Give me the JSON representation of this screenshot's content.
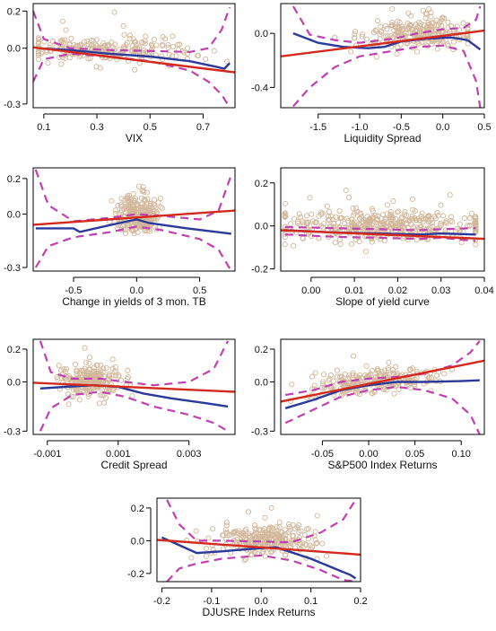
{
  "colors": {
    "points": "#d2b79a",
    "linear_fit": "#d42a1c",
    "smooth_fit": "#2b3a9a",
    "band": "#c040b0",
    "frame": "#000000"
  },
  "chart_data": [
    {
      "type": "scatter",
      "xlabel": "VIX",
      "xlim": [
        0.06,
        0.82
      ],
      "ylim": [
        -0.32,
        0.24
      ],
      "x_ticks": [
        0.1,
        0.3,
        0.5,
        0.7
      ],
      "x_tick_labels": [
        "0.1",
        "0.3",
        "0.5",
        "0.7"
      ],
      "y_ticks": [
        -0.3,
        0.0,
        0.2
      ],
      "y_tick_labels": [
        "-0.3",
        "0.0",
        "0.2"
      ],
      "linear_fit": [
        [
          0.06,
          0.005
        ],
        [
          0.82,
          -0.13
        ]
      ],
      "smooth_fit": [
        [
          0.08,
          0.0
        ],
        [
          0.2,
          -0.01
        ],
        [
          0.35,
          -0.03
        ],
        [
          0.5,
          -0.045
        ],
        [
          0.65,
          -0.07
        ],
        [
          0.75,
          -0.1
        ],
        [
          0.78,
          -0.11
        ],
        [
          0.8,
          -0.08
        ]
      ],
      "band_upper": [
        [
          0.06,
          0.2
        ],
        [
          0.1,
          0.05
        ],
        [
          0.2,
          0.0
        ],
        [
          0.35,
          -0.01
        ],
        [
          0.5,
          -0.015
        ],
        [
          0.65,
          -0.02
        ],
        [
          0.72,
          0.0
        ],
        [
          0.77,
          0.1
        ],
        [
          0.8,
          0.22
        ]
      ],
      "band_lower": [
        [
          0.06,
          -0.18
        ],
        [
          0.1,
          -0.06
        ],
        [
          0.2,
          -0.03
        ],
        [
          0.35,
          -0.045
        ],
        [
          0.5,
          -0.07
        ],
        [
          0.65,
          -0.12
        ],
        [
          0.72,
          -0.18
        ],
        [
          0.77,
          -0.25
        ],
        [
          0.8,
          -0.32
        ]
      ],
      "points": {
        "count": 240,
        "x_center": 0.33,
        "x_spread": 0.16,
        "x_range": [
          0.08,
          0.79
        ],
        "y_center": -0.005,
        "y_spread": 0.035,
        "y_range": [
          -0.12,
          0.22
        ],
        "seed": 11
      }
    },
    {
      "type": "scatter",
      "xlabel": "Liquidity Spread",
      "xlim": [
        -1.95,
        0.5
      ],
      "ylim": [
        -0.55,
        0.22
      ],
      "x_ticks": [
        -1.5,
        -1.0,
        -0.5,
        0.0,
        0.5
      ],
      "x_tick_labels": [
        "-1.5",
        "-1.0",
        "-0.5",
        "0.0",
        "0.5"
      ],
      "y_ticks": [
        -0.4,
        0.0
      ],
      "y_tick_labels": [
        "-0.4",
        "0.0"
      ],
      "linear_fit": [
        [
          -1.95,
          -0.17
        ],
        [
          0.5,
          0.02
        ]
      ],
      "smooth_fit": [
        [
          -1.8,
          0.0
        ],
        [
          -1.5,
          -0.07
        ],
        [
          -1.2,
          -0.1
        ],
        [
          -0.9,
          -0.11
        ],
        [
          -0.7,
          -0.1
        ],
        [
          -0.5,
          -0.06
        ],
        [
          -0.2,
          -0.04
        ],
        [
          0.1,
          -0.03
        ],
        [
          0.3,
          -0.05
        ],
        [
          0.45,
          -0.12
        ]
      ],
      "band_upper": [
        [
          -1.8,
          0.2
        ],
        [
          -1.6,
          -0.01
        ],
        [
          -1.3,
          -0.05
        ],
        [
          -1.0,
          -0.07
        ],
        [
          -0.6,
          -0.04
        ],
        [
          -0.3,
          0.0
        ],
        [
          0.0,
          0.03
        ],
        [
          0.25,
          0.04
        ],
        [
          0.4,
          0.1
        ],
        [
          0.45,
          0.2
        ]
      ],
      "band_lower": [
        [
          -1.8,
          -0.54
        ],
        [
          -1.6,
          -0.4
        ],
        [
          -1.3,
          -0.25
        ],
        [
          -1.0,
          -0.17
        ],
        [
          -0.6,
          -0.13
        ],
        [
          -0.3,
          -0.1
        ],
        [
          0.0,
          -0.09
        ],
        [
          0.25,
          -0.13
        ],
        [
          0.4,
          -0.35
        ],
        [
          0.45,
          -0.55
        ]
      ],
      "points": {
        "count": 240,
        "x_center": -0.3,
        "x_spread": 0.3,
        "x_range": [
          -1.3,
          0.3
        ],
        "y_center": 0.0,
        "y_spread": 0.06,
        "y_range": [
          -0.22,
          0.18
        ],
        "seed": 23
      }
    },
    {
      "type": "scatter",
      "xlabel": "Change in yields of 3 mon. TB",
      "xlim": [
        -0.82,
        0.78
      ],
      "ylim": [
        -0.32,
        0.26
      ],
      "x_ticks": [
        -0.5,
        0.0,
        0.5
      ],
      "x_tick_labels": [
        "-0.5",
        "0.0",
        "0.5"
      ],
      "y_ticks": [
        -0.3,
        0.0,
        0.2
      ],
      "y_tick_labels": [
        "-0.3",
        "0.0",
        "0.2"
      ],
      "linear_fit": [
        [
          -0.82,
          -0.06
        ],
        [
          0.78,
          0.02
        ]
      ],
      "smooth_fit": [
        [
          -0.8,
          -0.08
        ],
        [
          -0.5,
          -0.08
        ],
        [
          -0.45,
          -0.1
        ],
        [
          -0.2,
          -0.06
        ],
        [
          0.0,
          -0.03
        ],
        [
          0.1,
          -0.05
        ],
        [
          0.4,
          -0.08
        ],
        [
          0.75,
          -0.11
        ]
      ],
      "band_upper": [
        [
          -0.8,
          0.25
        ],
        [
          -0.7,
          0.05
        ],
        [
          -0.5,
          -0.04
        ],
        [
          -0.2,
          -0.02
        ],
        [
          0.0,
          0.0
        ],
        [
          0.2,
          -0.01
        ],
        [
          0.5,
          -0.03
        ],
        [
          0.65,
          0.02
        ],
        [
          0.75,
          0.22
        ]
      ],
      "band_lower": [
        [
          -0.8,
          -0.3
        ],
        [
          -0.7,
          -0.18
        ],
        [
          -0.5,
          -0.13
        ],
        [
          -0.2,
          -0.1
        ],
        [
          0.0,
          -0.07
        ],
        [
          0.2,
          -0.09
        ],
        [
          0.5,
          -0.14
        ],
        [
          0.65,
          -0.2
        ],
        [
          0.75,
          -0.32
        ]
      ],
      "points": {
        "count": 250,
        "x_center": 0.0,
        "x_spread": 0.09,
        "x_range": [
          -0.45,
          0.45
        ],
        "y_center": 0.0,
        "y_spread": 0.05,
        "y_range": [
          -0.22,
          0.22
        ],
        "seed": 37
      }
    },
    {
      "type": "scatter",
      "xlabel": "Slope of yield curve",
      "xlim": [
        -0.007,
        0.04
      ],
      "ylim": [
        -0.21,
        0.27
      ],
      "x_ticks": [
        0.0,
        0.01,
        0.02,
        0.03,
        0.04
      ],
      "x_tick_labels": [
        "0.00",
        "0.01",
        "0.02",
        "0.03",
        "0.04"
      ],
      "y_ticks": [
        -0.2,
        0.0,
        0.2
      ],
      "y_tick_labels": [
        "-0.2",
        "0.0",
        "0.2"
      ],
      "linear_fit": [
        [
          -0.007,
          -0.02
        ],
        [
          0.04,
          -0.06
        ]
      ],
      "smooth_fit": [
        [
          -0.006,
          -0.02
        ],
        [
          0.005,
          -0.03
        ],
        [
          0.015,
          -0.035
        ],
        [
          0.025,
          -0.04
        ],
        [
          0.03,
          -0.035
        ],
        [
          0.038,
          -0.04
        ]
      ],
      "band_upper": [
        [
          -0.006,
          -0.005
        ],
        [
          0.005,
          -0.01
        ],
        [
          0.015,
          -0.015
        ],
        [
          0.025,
          -0.02
        ],
        [
          0.03,
          -0.015
        ],
        [
          0.038,
          -0.01
        ]
      ],
      "band_lower": [
        [
          -0.006,
          -0.04
        ],
        [
          0.005,
          -0.05
        ],
        [
          0.015,
          -0.055
        ],
        [
          0.025,
          -0.06
        ],
        [
          0.03,
          -0.055
        ],
        [
          0.038,
          -0.07
        ]
      ],
      "points": {
        "count": 420,
        "x_center": 0.017,
        "x_spread": 0.012,
        "x_range": [
          -0.006,
          0.038
        ],
        "y_center": 0.0,
        "y_spread": 0.035,
        "y_range": [
          -0.15,
          0.26
        ],
        "seed": 51
      }
    },
    {
      "type": "scatter",
      "xlabel": "Credit Spread",
      "xlim": [
        -0.0014,
        0.0043
      ],
      "ylim": [
        -0.32,
        0.26
      ],
      "x_ticks": [
        -0.001,
        0.001,
        0.003
      ],
      "x_tick_labels": [
        "-0.001",
        "0.001",
        "0.003"
      ],
      "y_ticks": [
        -0.3,
        0.0,
        0.2
      ],
      "y_tick_labels": [
        "-0.3",
        "0.0",
        "0.2"
      ],
      "linear_fit": [
        [
          -0.0014,
          -0.005
        ],
        [
          0.0043,
          -0.06
        ]
      ],
      "smooth_fit": [
        [
          -0.0012,
          -0.04
        ],
        [
          -0.0005,
          -0.03
        ],
        [
          0.0003,
          -0.02
        ],
        [
          0.001,
          -0.03
        ],
        [
          0.0017,
          -0.07
        ],
        [
          0.0025,
          -0.1
        ],
        [
          0.0035,
          -0.13
        ],
        [
          0.0041,
          -0.15
        ]
      ],
      "band_upper": [
        [
          -0.0012,
          0.25
        ],
        [
          -0.0009,
          0.06
        ],
        [
          -0.0003,
          0.02
        ],
        [
          0.0005,
          0.02
        ],
        [
          0.0012,
          0.0
        ],
        [
          0.002,
          -0.02
        ],
        [
          0.003,
          0.0
        ],
        [
          0.0037,
          0.08
        ],
        [
          0.0041,
          0.25
        ]
      ],
      "band_lower": [
        [
          -0.0012,
          -0.3
        ],
        [
          -0.0009,
          -0.16
        ],
        [
          -0.0003,
          -0.08
        ],
        [
          0.0005,
          -0.06
        ],
        [
          0.0012,
          -0.09
        ],
        [
          0.002,
          -0.15
        ],
        [
          0.003,
          -0.2
        ],
        [
          0.0037,
          -0.25
        ],
        [
          0.0041,
          -0.3
        ]
      ],
      "points": {
        "count": 250,
        "x_center": 0.0002,
        "x_spread": 0.0004,
        "x_range": [
          -0.0012,
          0.0014
        ],
        "y_center": 0.0,
        "y_spread": 0.04,
        "y_range": [
          -0.15,
          0.24
        ],
        "seed": 67
      }
    },
    {
      "type": "scatter",
      "xlabel": "S&P500 Index Returns",
      "xlim": [
        -0.095,
        0.125
      ],
      "ylim": [
        -0.32,
        0.26
      ],
      "x_ticks": [
        -0.05,
        0.0,
        0.05,
        0.1
      ],
      "x_tick_labels": [
        "-0.05",
        "0.00",
        "0.05",
        "0.10"
      ],
      "y_ticks": [
        -0.3,
        0.0,
        0.2
      ],
      "y_tick_labels": [
        "-0.3",
        "0.0",
        "0.2"
      ],
      "linear_fit": [
        [
          -0.095,
          -0.12
        ],
        [
          0.125,
          0.13
        ]
      ],
      "smooth_fit": [
        [
          -0.09,
          -0.16
        ],
        [
          -0.06,
          -0.11
        ],
        [
          -0.03,
          -0.05
        ],
        [
          0.0,
          -0.02
        ],
        [
          0.03,
          0.0
        ],
        [
          0.06,
          0.0
        ],
        [
          0.1,
          0.005
        ],
        [
          0.12,
          0.01
        ]
      ],
      "band_upper": [
        [
          -0.09,
          -0.08
        ],
        [
          -0.06,
          -0.05
        ],
        [
          -0.03,
          0.0
        ],
        [
          0.0,
          0.02
        ],
        [
          0.03,
          0.03
        ],
        [
          0.06,
          0.05
        ],
        [
          0.09,
          0.1
        ],
        [
          0.11,
          0.18
        ],
        [
          0.12,
          0.25
        ]
      ],
      "band_lower": [
        [
          -0.09,
          -0.25
        ],
        [
          -0.06,
          -0.17
        ],
        [
          -0.03,
          -0.09
        ],
        [
          0.0,
          -0.05
        ],
        [
          0.03,
          -0.03
        ],
        [
          0.06,
          -0.05
        ],
        [
          0.09,
          -0.1
        ],
        [
          0.11,
          -0.2
        ],
        [
          0.12,
          -0.32
        ]
      ],
      "points": {
        "count": 250,
        "x_center": 0.005,
        "x_spread": 0.035,
        "x_range": [
          -0.085,
          0.09
        ],
        "y_center": 0.0,
        "y_spread": 0.035,
        "y_range": [
          -0.2,
          0.24
        ],
        "seed": 79,
        "slope": 0.6
      }
    },
    {
      "type": "scatter",
      "xlabel": "DJUSRE Index Returns",
      "xlim": [
        -0.21,
        0.2
      ],
      "ylim": [
        -0.25,
        0.26
      ],
      "x_ticks": [
        -0.2,
        -0.1,
        0.0,
        0.1,
        0.2
      ],
      "x_tick_labels": [
        "-0.2",
        "-0.1",
        "0.0",
        "0.1",
        "0.2"
      ],
      "y_ticks": [
        -0.2,
        0.0,
        0.2
      ],
      "y_tick_labels": [
        "-0.2",
        "0.0",
        "0.2"
      ],
      "linear_fit": [
        [
          -0.21,
          0.005
        ],
        [
          0.2,
          -0.085
        ]
      ],
      "smooth_fit": [
        [
          -0.2,
          0.02
        ],
        [
          -0.17,
          -0.02
        ],
        [
          -0.13,
          -0.075
        ],
        [
          -0.08,
          -0.065
        ],
        [
          -0.02,
          -0.05
        ],
        [
          0.03,
          -0.04
        ],
        [
          0.06,
          -0.07
        ],
        [
          0.1,
          -0.11
        ],
        [
          0.14,
          -0.16
        ],
        [
          0.18,
          -0.21
        ],
        [
          0.19,
          -0.23
        ]
      ],
      "band_upper": [
        [
          -0.19,
          0.25
        ],
        [
          -0.165,
          0.1
        ],
        [
          -0.13,
          0.0
        ],
        [
          -0.08,
          0.0
        ],
        [
          0.0,
          -0.005
        ],
        [
          0.06,
          -0.01
        ],
        [
          0.12,
          0.05
        ],
        [
          0.165,
          0.13
        ],
        [
          0.19,
          0.25
        ]
      ],
      "band_lower": [
        [
          -0.19,
          -0.25
        ],
        [
          -0.165,
          -0.17
        ],
        [
          -0.13,
          -0.14
        ],
        [
          -0.08,
          -0.11
        ],
        [
          0.0,
          -0.09
        ],
        [
          0.06,
          -0.12
        ],
        [
          0.12,
          -0.18
        ],
        [
          0.165,
          -0.24
        ],
        [
          0.19,
          -0.25
        ]
      ],
      "points": {
        "count": 260,
        "x_center": 0.0,
        "x_spread": 0.055,
        "x_range": [
          -0.15,
          0.16
        ],
        "y_center": 0.0,
        "y_spread": 0.05,
        "y_range": [
          -0.18,
          0.24
        ],
        "seed": 97
      }
    }
  ]
}
